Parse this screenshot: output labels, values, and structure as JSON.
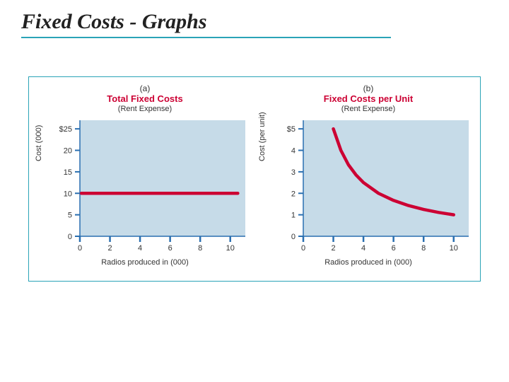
{
  "title": "Fixed Costs - Graphs",
  "colors": {
    "accent": "#2aa3b7",
    "series": "#cc0033",
    "plot_bg": "#c6dbe8",
    "axis": "#2a6fb0",
    "tick": "#2a6fb0",
    "text": "#333333",
    "page_bg": "#ffffff"
  },
  "chart_a": {
    "panel_label": "(a)",
    "title": "Total Fixed Costs",
    "subtitle": "(Rent Expense)",
    "ylabel": "Cost (000)",
    "xlabel": "Radios produced in (000)",
    "type": "line",
    "xlim": [
      0,
      11
    ],
    "ylim": [
      0,
      27
    ],
    "xticks": [
      0,
      2,
      4,
      6,
      8,
      10
    ],
    "yticks": [
      0,
      5,
      10,
      15,
      20,
      25
    ],
    "ytick_labels": [
      "0",
      "5",
      "10",
      "15",
      "20",
      "$25"
    ],
    "series": {
      "points": [
        [
          0.1,
          10
        ],
        [
          10.5,
          10
        ]
      ],
      "color": "#cc0033",
      "width": 4.5
    }
  },
  "chart_b": {
    "panel_label": "(b)",
    "title": "Fixed Costs per Unit",
    "subtitle": "(Rent Expense)",
    "ylabel": "Cost (per unit)",
    "xlabel": "Radios produced in (000)",
    "type": "curve",
    "xlim": [
      0,
      11
    ],
    "ylim": [
      0,
      5.4
    ],
    "xticks": [
      0,
      2,
      4,
      6,
      8,
      10
    ],
    "yticks": [
      0,
      1,
      2,
      3,
      4,
      5
    ],
    "ytick_labels": [
      "0",
      "1",
      "2",
      "3",
      "4",
      "$5"
    ],
    "series": {
      "points": [
        [
          2.0,
          5.0
        ],
        [
          2.5,
          4.0
        ],
        [
          3.0,
          3.33
        ],
        [
          3.5,
          2.86
        ],
        [
          4.0,
          2.5
        ],
        [
          5.0,
          2.0
        ],
        [
          6.0,
          1.67
        ],
        [
          7.0,
          1.43
        ],
        [
          8.0,
          1.25
        ],
        [
          9.0,
          1.11
        ],
        [
          10.0,
          1.0
        ]
      ],
      "color": "#cc0033",
      "width": 4.5
    }
  }
}
